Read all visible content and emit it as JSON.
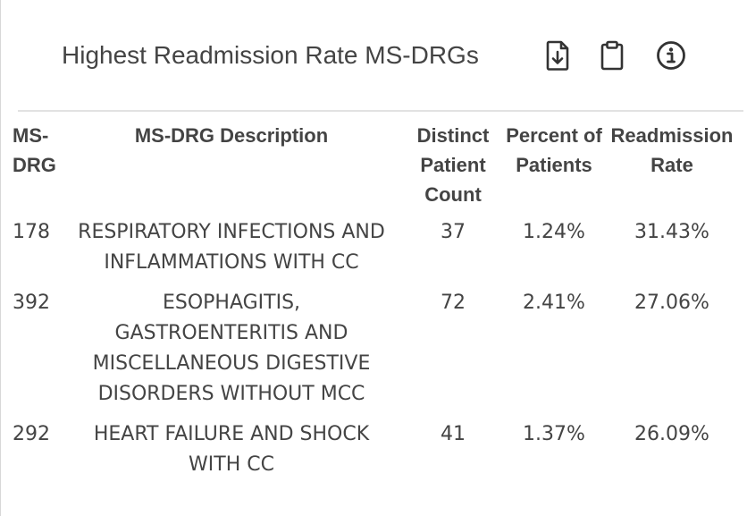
{
  "widget": {
    "title": "Highest Readmission Rate MS-DRGs",
    "icons": {
      "download": "download-document-icon",
      "clipboard": "clipboard-icon",
      "info": "info-circle-icon"
    }
  },
  "table": {
    "headers": {
      "msdrg": "MS-DRG",
      "description": "MS-DRG Description",
      "distinct_patient_count": "Distinct Patient Count",
      "percent_of_patients": "Percent of Patients",
      "readmission_rate": "Readmission Rate"
    },
    "rows": [
      {
        "msdrg": "178",
        "description": "RESPIRATORY INFECTIONS AND INFLAMMATIONS WITH CC",
        "distinct_patient_count": "37",
        "percent_of_patients": "1.24%",
        "readmission_rate": "31.43%"
      },
      {
        "msdrg": "392",
        "description": "ESOPHAGITIS, GASTROENTERITIS AND MISCELLANEOUS DIGESTIVE DISORDERS WITHOUT MCC",
        "distinct_patient_count": "72",
        "percent_of_patients": "2.41%",
        "readmission_rate": "27.06%"
      },
      {
        "msdrg": "292",
        "description": "HEART FAILURE AND SHOCK WITH CC",
        "distinct_patient_count": "41",
        "percent_of_patients": "1.37%",
        "readmission_rate": "26.09%"
      }
    ]
  }
}
